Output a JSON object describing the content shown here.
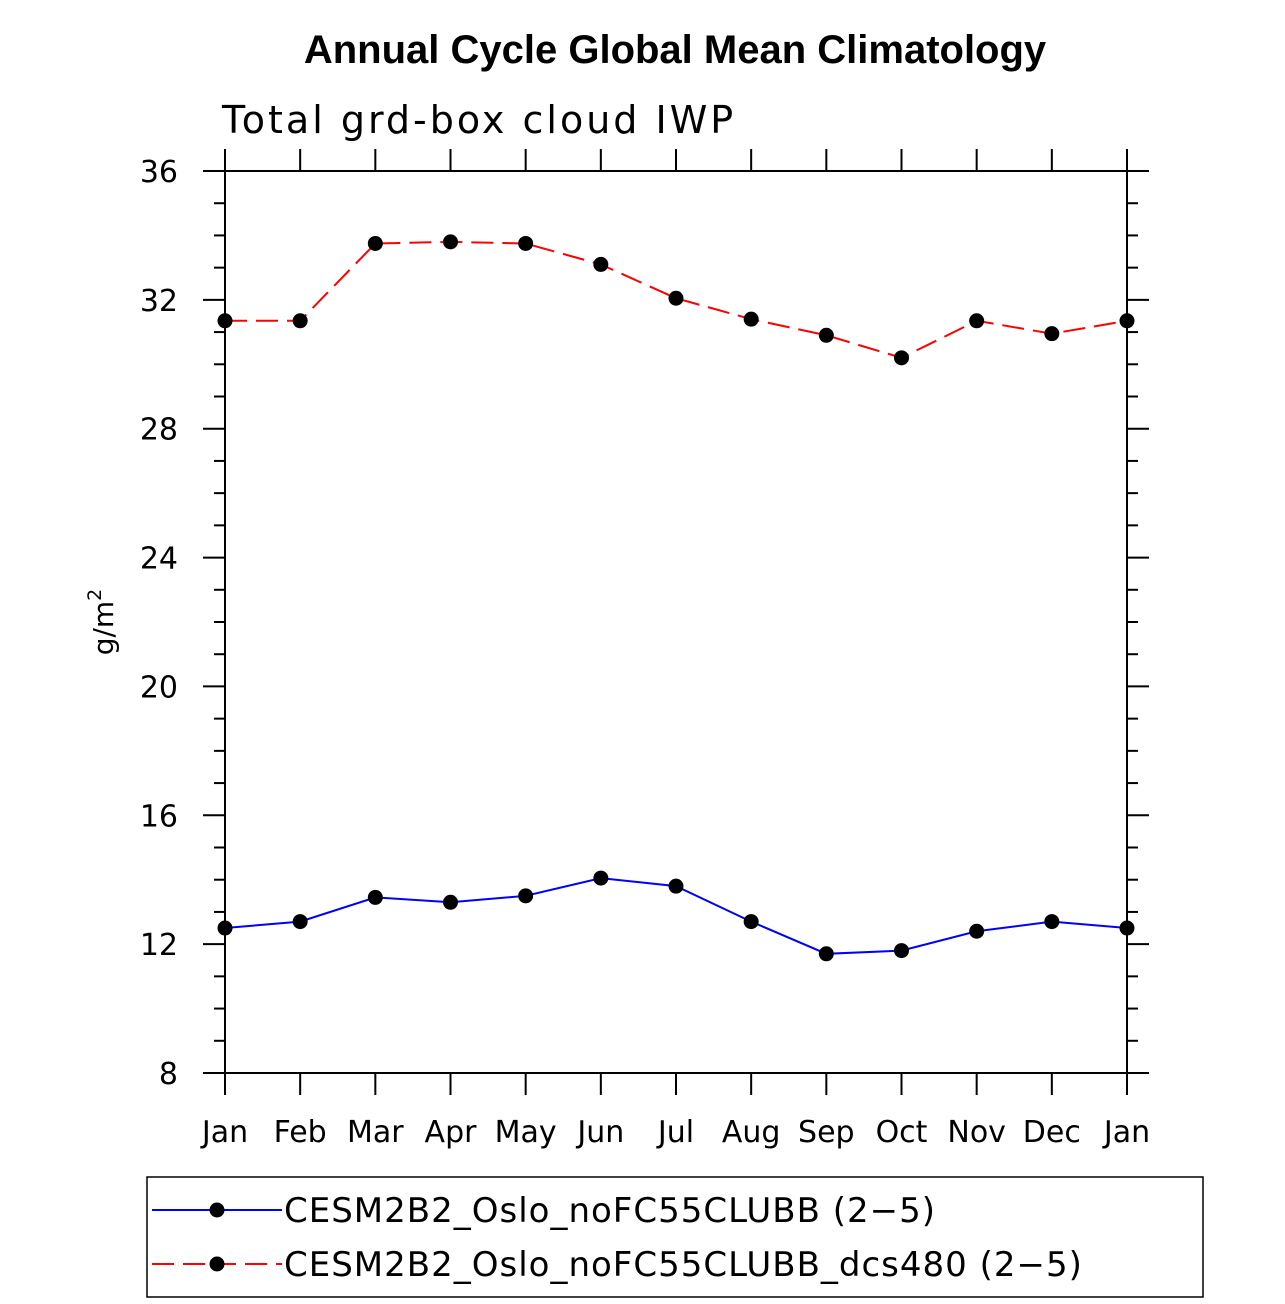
{
  "chart_data": {
    "type": "line",
    "title": "Annual Cycle Global Mean Climatology",
    "subtitle": "Total grd-box cloud IWP",
    "xlabel": "",
    "ylabel_base": "g/m",
    "ylabel_exp": "2",
    "ylim": [
      8,
      36
    ],
    "yticks": [
      8,
      12,
      16,
      20,
      24,
      28,
      32,
      36
    ],
    "categories": [
      "Jan",
      "Feb",
      "Mar",
      "Apr",
      "May",
      "Jun",
      "Jul",
      "Aug",
      "Sep",
      "Oct",
      "Nov",
      "Dec",
      "Jan"
    ],
    "grid": false,
    "legend_position": "bottom",
    "series": [
      {
        "name": "CESM2B2_Oslo_noFC55CLUBB (2−5)",
        "color": "#0000ff",
        "dash": "solid",
        "values": [
          12.5,
          12.7,
          13.45,
          13.3,
          13.5,
          14.05,
          13.8,
          12.7,
          11.7,
          11.8,
          12.4,
          12.7,
          12.5
        ]
      },
      {
        "name": "CESM2B2_Oslo_noFC55CLUBB_dcs480 (2−5)",
        "color": "#ff0000",
        "dash": "dashed",
        "values": [
          31.35,
          31.35,
          33.75,
          33.8,
          33.75,
          33.1,
          32.05,
          31.4,
          30.9,
          30.2,
          31.35,
          30.95,
          31.35
        ]
      }
    ]
  }
}
